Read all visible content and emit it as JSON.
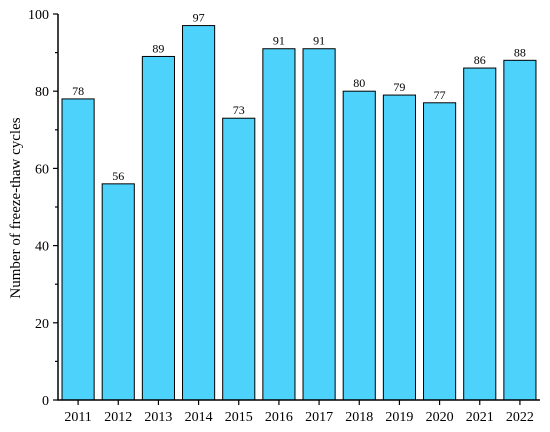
{
  "chart_data": {
    "type": "bar",
    "categories": [
      "2011",
      "2012",
      "2013",
      "2014",
      "2015",
      "2016",
      "2017",
      "2018",
      "2019",
      "2020",
      "2021",
      "2022"
    ],
    "values": [
      78,
      56,
      89,
      97,
      73,
      91,
      91,
      80,
      79,
      77,
      86,
      88
    ],
    "data_labels": [
      "78",
      "56",
      "89",
      "97",
      "73",
      "91",
      "91",
      "80",
      "79",
      "77",
      "86",
      "88"
    ],
    "xlabel": "",
    "ylabel": "Number of freeze-thaw cycles",
    "ylim": [
      0,
      100
    ],
    "yticks": [
      0,
      20,
      40,
      60,
      80,
      100
    ],
    "ytick_labels": [
      "0",
      "20",
      "40",
      "60",
      "80",
      "100"
    ],
    "bar_color": "#4DD2FC",
    "grid": false,
    "legend": "none"
  }
}
